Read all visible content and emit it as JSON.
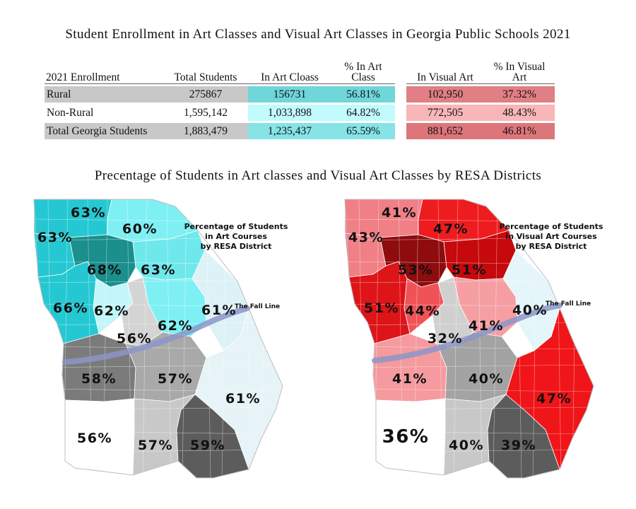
{
  "titles": {
    "table": "Student Enrollment in Art Classes and Visual Art Classes in Georgia Public Schools 2021",
    "maps": "Precentage of Students in Art classes and Visual Art Classes by RESA Districts"
  },
  "table": {
    "headers": [
      "2021 Enrollment",
      "Total Students",
      "In Art Cloass",
      "% In Art Class",
      "In Visual Art",
      "% In Visual Art"
    ],
    "rows": [
      {
        "label": "Rural",
        "total": "275867",
        "in_art": "156731",
        "pct_art": "56.81%",
        "in_visual": "102,950",
        "pct_visual": "37.32%"
      },
      {
        "label": "Non-Rural",
        "total": "1,595,142",
        "in_art": "1,033,898",
        "pct_art": "64.82%",
        "in_visual": "772,505",
        "pct_visual": "48.43%"
      },
      {
        "label": "Total Georgia Students",
        "total": "1,883,479",
        "in_art": "1,235,437",
        "pct_art": "65.59%",
        "in_visual": "881,652",
        "pct_visual": "46.81%"
      }
    ]
  },
  "map_art": {
    "legend": [
      "Percentage of Students",
      "in Art Courses",
      "by RESA District"
    ],
    "fall_line": "The Fall Line",
    "districts": [
      {
        "id": "nw-upper",
        "label": "63%",
        "fill": "#25c8d2"
      },
      {
        "id": "nw-lower",
        "label": "63%",
        "fill": "#25c8d2"
      },
      {
        "id": "ne-north",
        "label": "60%",
        "fill": "#7ef0f3"
      },
      {
        "id": "metro",
        "label": "68%",
        "fill": "#1a8f8c"
      },
      {
        "id": "ne-mid",
        "label": "63%",
        "fill": "#6fe8ec"
      },
      {
        "id": "west",
        "label": "66%",
        "fill": "#25c8d2"
      },
      {
        "id": "south-metro",
        "label": "62%",
        "fill": "#c2f6f8"
      },
      {
        "id": "central",
        "label": "56%",
        "fill": "#d4d4d4"
      },
      {
        "id": "augusta",
        "label": "62%",
        "fill": "#7ef0f3"
      },
      {
        "id": "east",
        "label": "61%",
        "fill": "#ddf2f6"
      },
      {
        "id": "southwest",
        "label": "58%",
        "fill": "#7b7b7b"
      },
      {
        "id": "south-central",
        "label": "57%",
        "fill": "#a9a9a9"
      },
      {
        "id": "coast",
        "label": "61%",
        "fill": "#e6f3f7"
      },
      {
        "id": "sw-corner",
        "label": "56%",
        "fill": "#ffffff"
      },
      {
        "id": "south",
        "label": "57%",
        "fill": "#c8c8c8"
      },
      {
        "id": "se",
        "label": "59%",
        "fill": "#5c5c5c"
      }
    ]
  },
  "map_visual": {
    "legend": [
      "Percentage of Students",
      "in Visual Art Courses",
      "by RESA District"
    ],
    "fall_line": "The Fall Line",
    "districts": [
      {
        "id": "nw-upper",
        "label": "41%",
        "fill": "#f07f86"
      },
      {
        "id": "nw-lower",
        "label": "43%",
        "fill": "#f07f86"
      },
      {
        "id": "ne-north",
        "label": "47%",
        "fill": "#ee1c1f"
      },
      {
        "id": "metro",
        "label": "53%",
        "fill": "#8e0b0e"
      },
      {
        "id": "ne-mid",
        "label": "51%",
        "fill": "#c6090c"
      },
      {
        "id": "west",
        "label": "51%",
        "fill": "#dd1418"
      },
      {
        "id": "south-metro",
        "label": "44%",
        "fill": "#f05357"
      },
      {
        "id": "central",
        "label": "32%",
        "fill": "#d0d0d0"
      },
      {
        "id": "augusta",
        "label": "41%",
        "fill": "#f59fa3"
      },
      {
        "id": "east",
        "label": "40%",
        "fill": "#e4f6fa"
      },
      {
        "id": "southwest",
        "label": "41%",
        "fill": "#f59a9e"
      },
      {
        "id": "south-central",
        "label": "40%",
        "fill": "#a3a3a3"
      },
      {
        "id": "coast",
        "label": "47%",
        "fill": "#ef1519"
      },
      {
        "id": "sw-corner",
        "label": "36%",
        "fill": "#ffffff"
      },
      {
        "id": "south",
        "label": "40%",
        "fill": "#c8c8c8"
      },
      {
        "id": "se",
        "label": "39%",
        "fill": "#5c5c5c"
      }
    ]
  }
}
